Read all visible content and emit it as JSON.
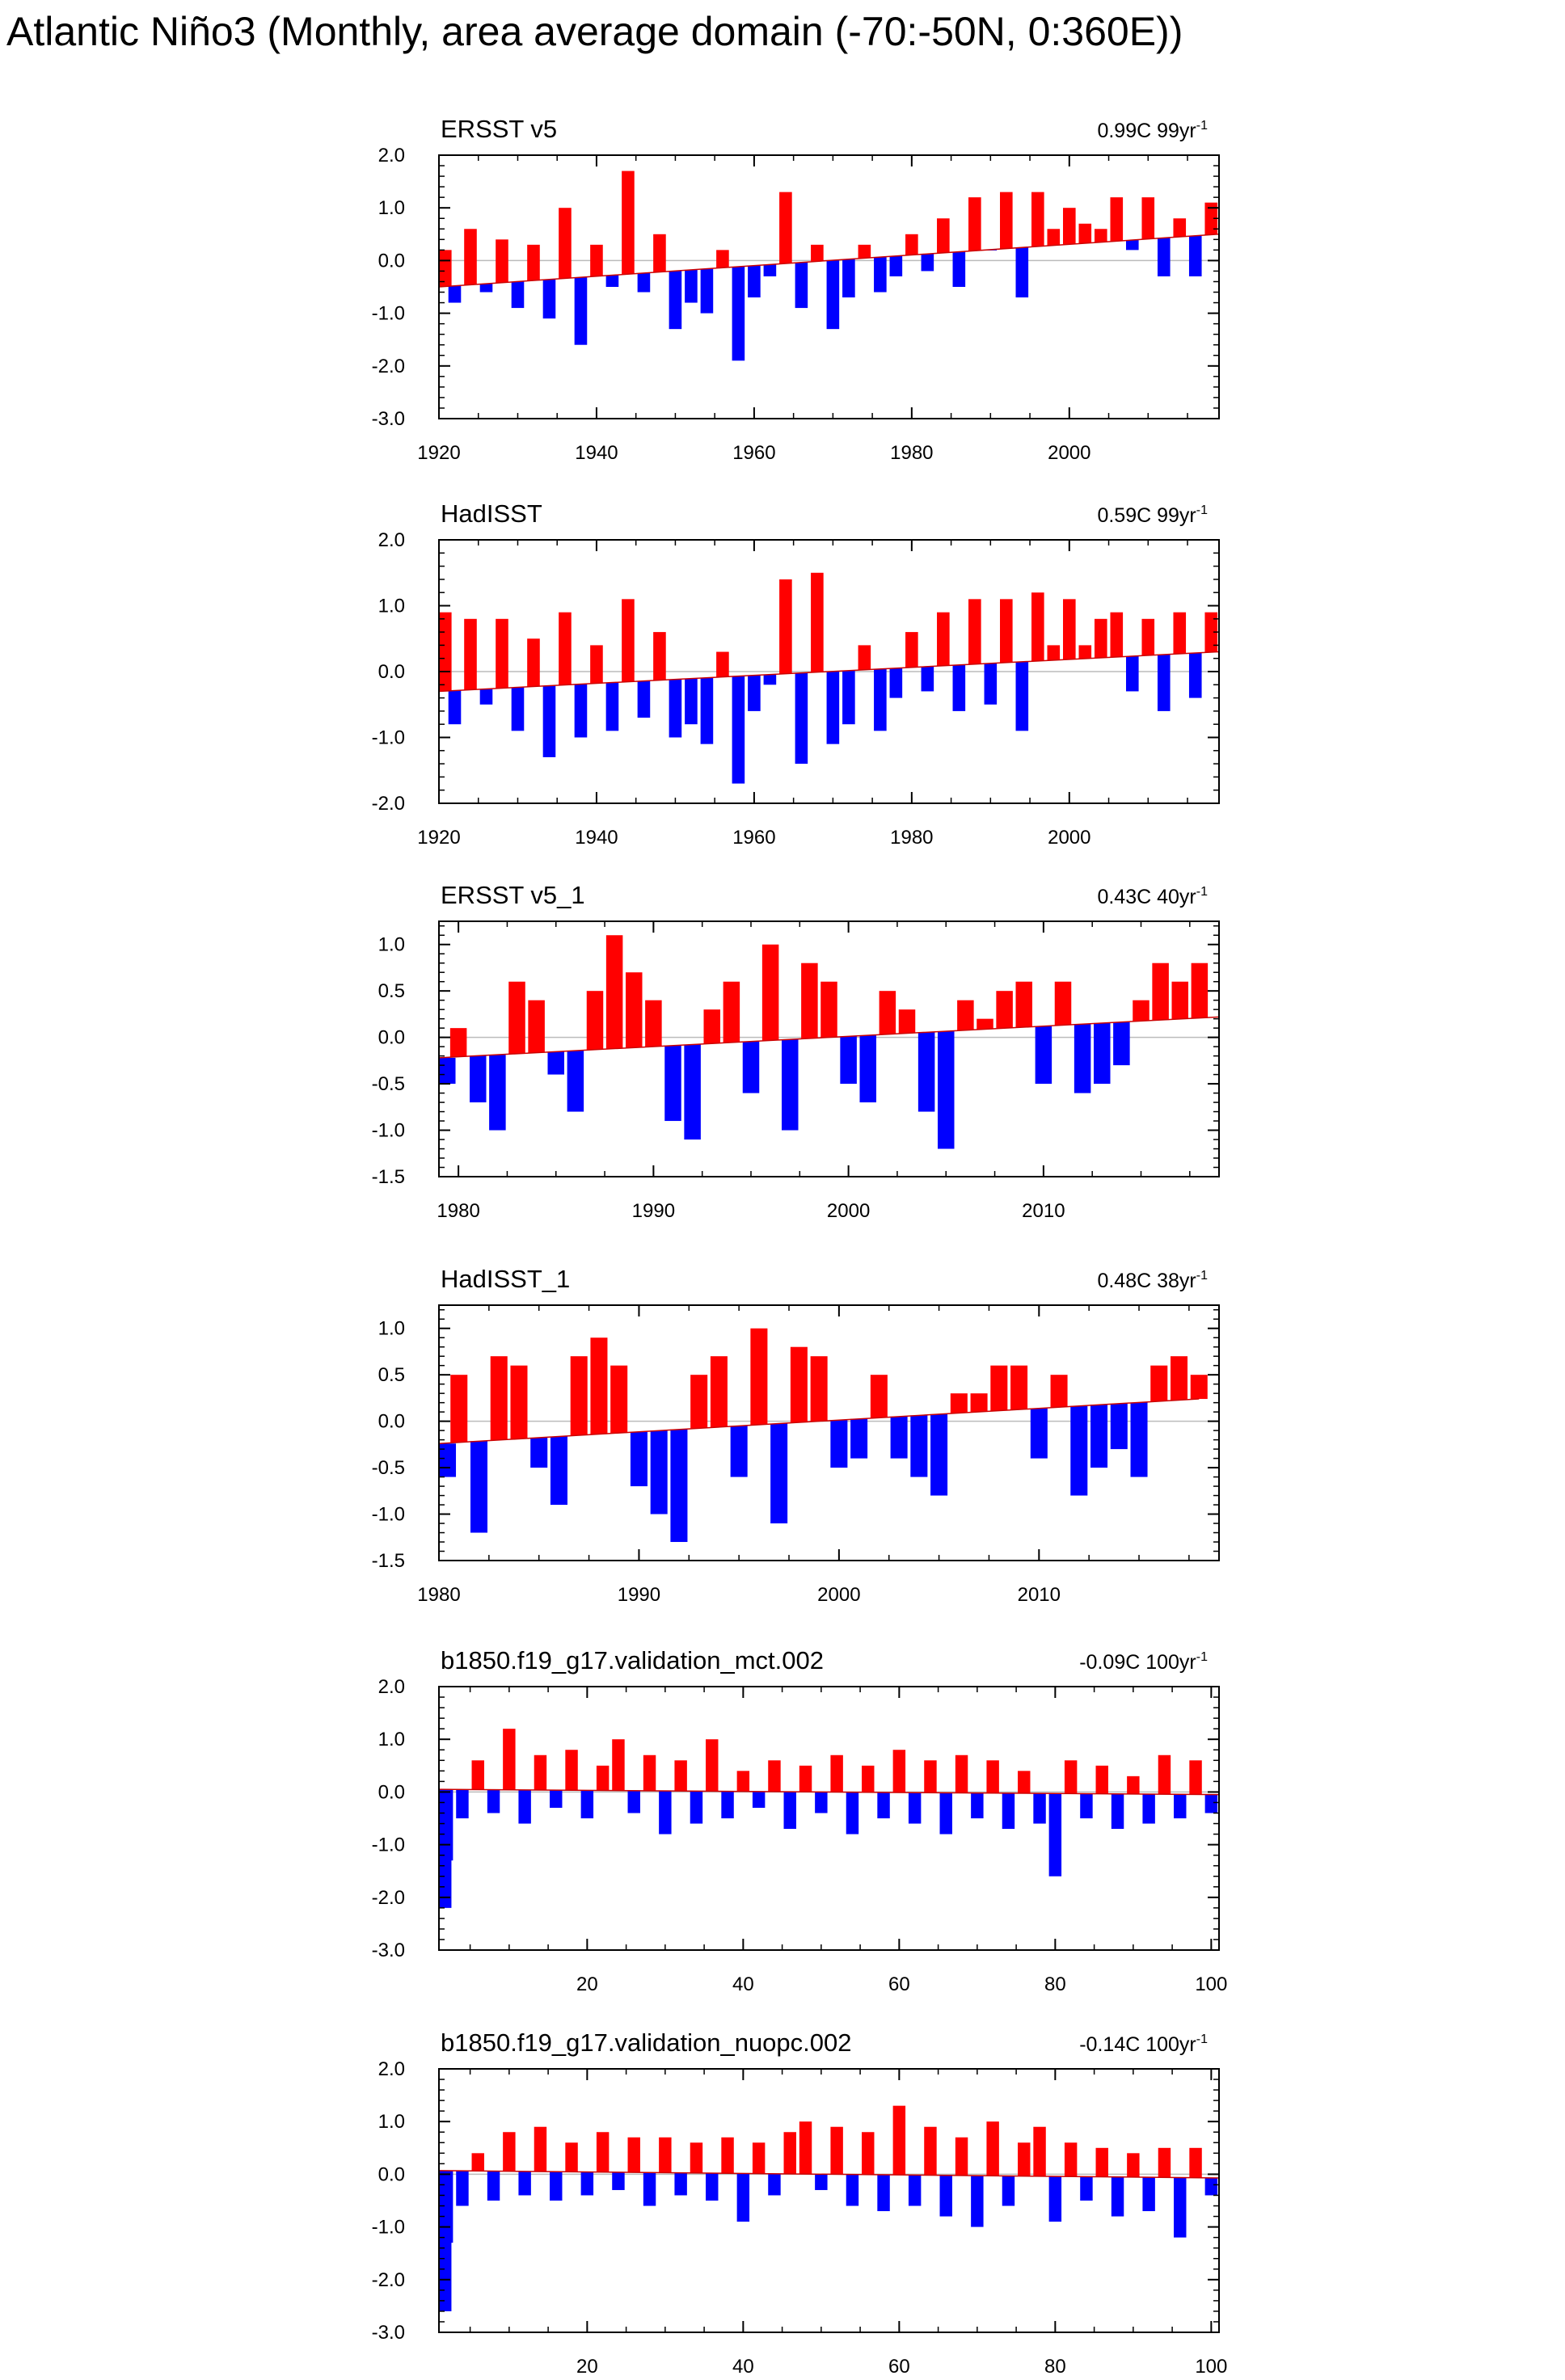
{
  "title": "Atlantic Niño3 (Monthly, area average domain (-70:-50N, 0:360E))",
  "colors": {
    "positive": "#ff0000",
    "negative": "#0000ff",
    "axis": "#000000",
    "zero_line": "#bbbbbb"
  },
  "chart_data": [
    {
      "type": "bar",
      "title": "ERSST v5",
      "trend_value": "0.99C",
      "trend_period": "99yr",
      "trend_exponent": "-1",
      "xlim": [
        1920,
        2019
      ],
      "x_ticks": [
        1920,
        1940,
        1960,
        1980,
        2000
      ],
      "ylim": [
        -3.0,
        2.0
      ],
      "y_ticks": [
        "2.0",
        "1.0",
        "0.0",
        "-1.0",
        "-2.0",
        "-3.0"
      ],
      "trend_line": {
        "x": [
          1920,
          2019
        ],
        "y": [
          -0.5,
          0.5
        ]
      },
      "series": [
        {
          "x": [
            1920,
            1922,
            1924,
            1926,
            1928,
            1930,
            1932,
            1934,
            1936,
            1938,
            1940,
            1942,
            1944,
            1946,
            1948,
            1950,
            1952,
            1954,
            1956,
            1958,
            1960,
            1962,
            1964,
            1966,
            1968,
            1970,
            1972,
            1974,
            1976,
            1978,
            1980,
            1982,
            1984,
            1986,
            1988,
            1990,
            1992,
            1994,
            1996,
            1998,
            2000,
            2002,
            2004,
            2006,
            2008,
            2010,
            2012,
            2014,
            2016,
            2018
          ],
          "values": [
            0.2,
            -0.8,
            0.6,
            -0.6,
            0.4,
            -0.9,
            0.3,
            -1.1,
            1.0,
            -1.6,
            0.3,
            -0.5,
            1.7,
            -0.6,
            0.5,
            -1.3,
            -0.8,
            -1.0,
            0.2,
            -1.9,
            -0.7,
            -0.3,
            1.3,
            -0.9,
            0.3,
            -1.3,
            -0.7,
            0.3,
            -0.6,
            -0.3,
            0.5,
            -0.2,
            0.8,
            -0.5,
            1.2,
            0.2,
            1.3,
            -0.7,
            1.3,
            0.6,
            1.0,
            0.7,
            0.6,
            1.2,
            0.2,
            1.2,
            -0.3,
            0.8,
            -0.3,
            1.1
          ]
        }
      ]
    },
    {
      "type": "bar",
      "title": "HadISST",
      "trend_value": "0.59C",
      "trend_period": "99yr",
      "trend_exponent": "-1",
      "xlim": [
        1920,
        2019
      ],
      "x_ticks": [
        1920,
        1940,
        1960,
        1980,
        2000
      ],
      "ylim": [
        -2.0,
        2.0
      ],
      "y_ticks": [
        "2.0",
        "1.0",
        "0.0",
        "-1.0",
        "-2.0"
      ],
      "trend_line": {
        "x": [
          1920,
          2019
        ],
        "y": [
          -0.3,
          0.3
        ]
      },
      "series": [
        {
          "x": [
            1920,
            1922,
            1924,
            1926,
            1928,
            1930,
            1932,
            1934,
            1936,
            1938,
            1940,
            1942,
            1944,
            1946,
            1948,
            1950,
            1952,
            1954,
            1956,
            1958,
            1960,
            1962,
            1964,
            1966,
            1968,
            1970,
            1972,
            1974,
            1976,
            1978,
            1980,
            1982,
            1984,
            1986,
            1988,
            1990,
            1992,
            1994,
            1996,
            1998,
            2000,
            2002,
            2004,
            2006,
            2008,
            2010,
            2012,
            2014,
            2016,
            2018
          ],
          "values": [
            0.9,
            -0.8,
            0.8,
            -0.5,
            0.8,
            -0.9,
            0.5,
            -1.3,
            0.9,
            -1.0,
            0.4,
            -0.9,
            1.1,
            -0.7,
            0.6,
            -1.0,
            -0.8,
            -1.1,
            0.3,
            -1.7,
            -0.6,
            -0.2,
            1.4,
            -1.4,
            1.5,
            -1.1,
            -0.8,
            0.4,
            -0.9,
            -0.4,
            0.6,
            -0.3,
            0.9,
            -0.6,
            1.1,
            -0.5,
            1.1,
            -0.9,
            1.2,
            0.4,
            1.1,
            0.4,
            0.8,
            0.9,
            -0.3,
            0.8,
            -0.6,
            0.9,
            -0.4,
            0.9
          ]
        }
      ]
    },
    {
      "type": "bar",
      "title": "ERSST v5_1",
      "trend_value": "0.43C",
      "trend_period": "40yr",
      "trend_exponent": "-1",
      "xlim": [
        1979,
        2019
      ],
      "x_ticks": [
        1980,
        1990,
        2000,
        2010
      ],
      "ylim": [
        -1.5,
        1.25
      ],
      "y_ticks": [
        "1.0",
        "0.5",
        "0.0",
        "-0.5",
        "-1.0",
        "-1.5"
      ],
      "trend_line": {
        "x": [
          1979,
          2019
        ],
        "y": [
          -0.22,
          0.22
        ]
      },
      "series": [
        {
          "x": [
            1979,
            1980,
            1981,
            1982,
            1983,
            1984,
            1985,
            1986,
            1987,
            1988,
            1989,
            1990,
            1991,
            1992,
            1993,
            1994,
            1995,
            1996,
            1997,
            1998,
            1999,
            2000,
            2001,
            2002,
            2003,
            2004,
            2005,
            2006,
            2007,
            2008,
            2009,
            2010,
            2011,
            2012,
            2013,
            2014,
            2015,
            2016,
            2017,
            2018
          ],
          "values": [
            -0.5,
            0.1,
            -0.7,
            -1.0,
            0.6,
            0.4,
            -0.4,
            -0.8,
            0.5,
            1.1,
            0.7,
            0.4,
            -0.9,
            -1.1,
            0.3,
            0.6,
            -0.6,
            1.0,
            -1.0,
            0.8,
            0.6,
            -0.5,
            -0.7,
            0.5,
            0.3,
            -0.8,
            -1.2,
            0.4,
            0.2,
            0.5,
            0.6,
            -0.5,
            0.6,
            -0.6,
            -0.5,
            -0.3,
            0.4,
            0.8,
            0.6,
            0.8
          ]
        }
      ]
    },
    {
      "type": "bar",
      "title": "HadISST_1",
      "trend_value": "0.48C",
      "trend_period": "38yr",
      "trend_exponent": "-1",
      "xlim": [
        1980,
        2019
      ],
      "x_ticks": [
        1980,
        1990,
        2000,
        2010
      ],
      "ylim": [
        -1.5,
        1.25
      ],
      "y_ticks": [
        "1.0",
        "0.5",
        "0.0",
        "-0.5",
        "-1.0",
        "-1.5"
      ],
      "trend_line": {
        "x": [
          1980,
          2018
        ],
        "y": [
          -0.24,
          0.24
        ]
      },
      "series": [
        {
          "x": [
            1980,
            1981,
            1982,
            1983,
            1984,
            1985,
            1986,
            1987,
            1988,
            1989,
            1990,
            1991,
            1992,
            1993,
            1994,
            1995,
            1996,
            1997,
            1998,
            1999,
            2000,
            2001,
            2002,
            2003,
            2004,
            2005,
            2006,
            2007,
            2008,
            2009,
            2010,
            2011,
            2012,
            2013,
            2014,
            2015,
            2016,
            2017,
            2018
          ],
          "values": [
            -0.6,
            0.5,
            -1.2,
            0.7,
            0.6,
            -0.5,
            -0.9,
            0.7,
            0.9,
            0.6,
            -0.7,
            -1.0,
            -1.3,
            0.5,
            0.7,
            -0.6,
            1.0,
            -1.1,
            0.8,
            0.7,
            -0.5,
            -0.4,
            0.5,
            -0.4,
            -0.6,
            -0.8,
            0.3,
            0.3,
            0.6,
            0.6,
            -0.4,
            0.5,
            -0.8,
            -0.5,
            -0.3,
            -0.6,
            0.6,
            0.7,
            0.5
          ]
        }
      ]
    },
    {
      "type": "bar",
      "title": "b1850.f19_g17.validation_mct.002",
      "trend_value": "-0.09C",
      "trend_period": "100yr",
      "trend_exponent": "-1",
      "xlim": [
        1,
        101
      ],
      "x_ticks": [
        20,
        40,
        60,
        80,
        100
      ],
      "ylim": [
        -3.0,
        2.0
      ],
      "y_ticks": [
        "2.0",
        "1.0",
        "0.0",
        "-1.0",
        "-2.0",
        "-3.0"
      ],
      "trend_line": {
        "x": [
          1,
          101
        ],
        "y": [
          0.05,
          -0.05
        ]
      },
      "series": [
        {
          "x": [
            1,
            2,
            4,
            6,
            8,
            10,
            12,
            14,
            16,
            18,
            20,
            22,
            24,
            26,
            28,
            30,
            32,
            34,
            36,
            38,
            40,
            42,
            44,
            46,
            48,
            50,
            52,
            54,
            56,
            58,
            60,
            62,
            64,
            66,
            68,
            70,
            72,
            74,
            76,
            78,
            80,
            82,
            84,
            86,
            88,
            90,
            92,
            94,
            96,
            98,
            100
          ],
          "values": [
            -2.2,
            -1.3,
            -0.5,
            0.6,
            -0.4,
            1.2,
            -0.6,
            0.7,
            -0.3,
            0.8,
            -0.5,
            0.5,
            1.0,
            -0.4,
            0.7,
            -0.8,
            0.6,
            -0.6,
            1.0,
            -0.5,
            0.4,
            -0.3,
            0.6,
            -0.7,
            0.5,
            -0.4,
            0.7,
            -0.8,
            0.5,
            -0.5,
            0.8,
            -0.6,
            0.6,
            -0.8,
            0.7,
            -0.5,
            0.6,
            -0.7,
            0.4,
            -0.6,
            -1.6,
            0.6,
            -0.5,
            0.5,
            -0.7,
            0.3,
            -0.6,
            0.7,
            -0.5,
            0.6,
            -0.4
          ]
        }
      ]
    },
    {
      "type": "bar",
      "title": "b1850.f19_g17.validation_nuopc.002",
      "trend_value": "-0.14C",
      "trend_period": "100yr",
      "trend_exponent": "-1",
      "xlim": [
        1,
        101
      ],
      "x_ticks": [
        20,
        40,
        60,
        80,
        100
      ],
      "ylim": [
        -3.0,
        2.0
      ],
      "y_ticks": [
        "2.0",
        "1.0",
        "0.0",
        "-1.0",
        "-2.0",
        "-3.0"
      ],
      "trend_line": {
        "x": [
          1,
          101
        ],
        "y": [
          0.07,
          -0.07
        ]
      },
      "series": [
        {
          "x": [
            1,
            2,
            4,
            6,
            8,
            10,
            12,
            14,
            16,
            18,
            20,
            22,
            24,
            26,
            28,
            30,
            32,
            34,
            36,
            38,
            40,
            42,
            44,
            46,
            48,
            50,
            52,
            54,
            56,
            58,
            60,
            62,
            64,
            66,
            68,
            70,
            72,
            74,
            76,
            78,
            80,
            82,
            84,
            86,
            88,
            90,
            92,
            94,
            96,
            98,
            100
          ],
          "values": [
            -2.6,
            -1.3,
            -0.6,
            0.4,
            -0.5,
            0.8,
            -0.4,
            0.9,
            -0.5,
            0.6,
            -0.4,
            0.8,
            -0.3,
            0.7,
            -0.6,
            0.7,
            -0.4,
            0.6,
            -0.5,
            0.7,
            -0.9,
            0.6,
            -0.4,
            0.8,
            1.0,
            -0.3,
            0.9,
            -0.6,
            0.8,
            -0.7,
            1.3,
            -0.6,
            0.9,
            -0.8,
            0.7,
            -1.0,
            1.0,
            -0.6,
            0.6,
            0.9,
            -0.9,
            0.6,
            -0.5,
            0.5,
            -0.8,
            0.4,
            -0.7,
            0.5,
            -1.2,
            0.5,
            -0.4
          ]
        }
      ]
    }
  ]
}
